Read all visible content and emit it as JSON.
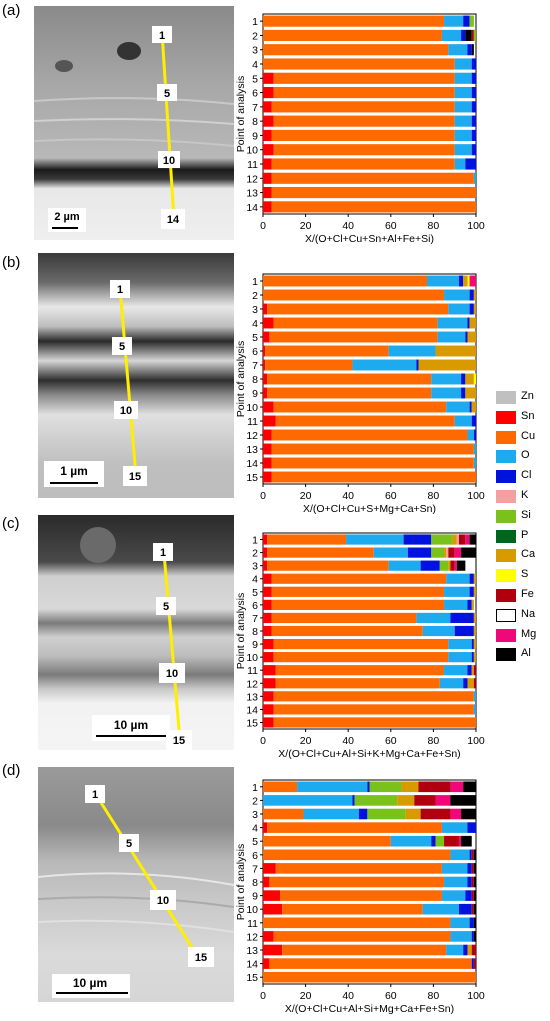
{
  "panels": [
    {
      "label": "(a)",
      "markers": [
        "1",
        "5",
        "10",
        "14"
      ],
      "scale_bar": "2 µm"
    },
    {
      "label": "(b)",
      "markers": [
        "1",
        "5",
        "10",
        "15"
      ],
      "scale_bar": "1 µm"
    },
    {
      "label": "(c)",
      "markers": [
        "1",
        "5",
        "10",
        "15"
      ],
      "scale_bar": "10 µm"
    },
    {
      "label": "(d)",
      "markers": [
        "1",
        "5",
        "10",
        "15"
      ],
      "scale_bar": "10 µm"
    }
  ],
  "legend": [
    {
      "name": "Zn",
      "color": "#c0c0c0"
    },
    {
      "name": "Sn",
      "color": "#ff0000"
    },
    {
      "name": "Cu",
      "color": "#ff6a00"
    },
    {
      "name": "O",
      "color": "#1eaaee"
    },
    {
      "name": "Cl",
      "color": "#0012dd"
    },
    {
      "name": "K",
      "color": "#f5a0a0"
    },
    {
      "name": "Si",
      "color": "#7ac11c"
    },
    {
      "name": "P",
      "color": "#00661e"
    },
    {
      "name": "Ca",
      "color": "#d99a00"
    },
    {
      "name": "S",
      "color": "#ffff00"
    },
    {
      "name": "Fe",
      "color": "#b00010"
    },
    {
      "name": "Na",
      "color": "#ffffff"
    },
    {
      "name": "Mg",
      "color": "#f0087a"
    },
    {
      "name": "Al",
      "color": "#000000"
    }
  ],
  "chart_data": [
    {
      "type": "bar",
      "orientation": "horizontal-stacked",
      "ylabel": "Point of analysis",
      "xlabel": "X/(O+Cl+Cu+Sn+Al+Fe+Si)",
      "xlim": [
        0,
        100
      ],
      "xticks": [
        "0",
        "20",
        "40",
        "60",
        "80",
        "100"
      ],
      "categories": [
        "1",
        "2",
        "3",
        "4",
        "5",
        "6",
        "7",
        "8",
        "9",
        "10",
        "11",
        "12",
        "13",
        "14"
      ],
      "series": [
        {
          "name": "Sn",
          "values": [
            0,
            0,
            0,
            0,
            5,
            5,
            4,
            5,
            4,
            5,
            4,
            4,
            4,
            4
          ]
        },
        {
          "name": "Cu",
          "values": [
            85,
            84,
            87,
            90,
            85,
            85,
            86,
            85,
            86,
            85,
            86,
            95,
            96,
            96
          ]
        },
        {
          "name": "O",
          "values": [
            9,
            9,
            9,
            8,
            8,
            8,
            8,
            8,
            8,
            8,
            5,
            1,
            0,
            0
          ]
        },
        {
          "name": "Cl",
          "values": [
            3,
            2,
            2,
            2,
            2,
            2,
            2,
            2,
            2,
            2,
            5,
            0,
            0,
            0
          ]
        },
        {
          "name": "Al",
          "values": [
            0,
            3,
            1,
            0,
            0,
            0,
            0,
            0,
            0,
            0,
            0,
            0,
            0,
            0
          ]
        },
        {
          "name": "Fe",
          "values": [
            0,
            1,
            0,
            0,
            0,
            0,
            0,
            0,
            0,
            0,
            0,
            0,
            0,
            0
          ]
        },
        {
          "name": "Si",
          "values": [
            2,
            1,
            0,
            0,
            0,
            0,
            0,
            0,
            0,
            0,
            0,
            0,
            0,
            0
          ]
        }
      ]
    },
    {
      "type": "bar",
      "orientation": "horizontal-stacked",
      "ylabel": "Point of analysis",
      "xlabel": "X/(O+Cl+Cu+S+Mg+Ca+Sn)",
      "xlim": [
        0,
        100
      ],
      "xticks": [
        "0",
        "20",
        "40",
        "60",
        "80",
        "100"
      ],
      "categories": [
        "1",
        "2",
        "3",
        "4",
        "5",
        "6",
        "7",
        "8",
        "9",
        "10",
        "11",
        "12",
        "13",
        "14",
        "15"
      ],
      "series": [
        {
          "name": "Sn",
          "values": [
            0,
            0,
            2,
            5,
            3,
            1,
            1,
            2,
            2,
            5,
            6,
            4,
            4,
            4,
            4
          ]
        },
        {
          "name": "Cu",
          "values": [
            77,
            85,
            85,
            77,
            79,
            58,
            41,
            77,
            77,
            81,
            84,
            92,
            95,
            95,
            96
          ]
        },
        {
          "name": "O",
          "values": [
            15,
            12,
            10,
            14,
            13,
            22,
            30,
            14,
            14,
            11,
            8,
            3,
            1,
            1,
            0
          ]
        },
        {
          "name": "Cl",
          "values": [
            2,
            2,
            2,
            1,
            1,
            0,
            1,
            2,
            2,
            1,
            2,
            1,
            0,
            0,
            0
          ]
        },
        {
          "name": "Ca",
          "values": [
            2,
            1,
            1,
            3,
            4,
            19,
            27,
            4,
            5,
            2,
            0,
            0,
            0,
            0,
            0
          ]
        },
        {
          "name": "S",
          "values": [
            1,
            0,
            0,
            0,
            0,
            0,
            0,
            1,
            0,
            0,
            0,
            0,
            0,
            0,
            0
          ]
        },
        {
          "name": "Mg",
          "values": [
            3,
            0,
            0,
            0,
            0,
            0,
            0,
            0,
            0,
            0,
            0,
            0,
            0,
            0,
            0
          ]
        }
      ]
    },
    {
      "type": "bar",
      "orientation": "horizontal-stacked",
      "ylabel": "Point of analysis",
      "xlabel": "X/(O+Cl+Cu+Al+Si+K+Mg+Ca+Fe+Sn)",
      "xlim": [
        0,
        100
      ],
      "xticks": [
        "0",
        "20",
        "40",
        "60",
        "80",
        "100"
      ],
      "categories": [
        "1",
        "2",
        "3",
        "4",
        "5",
        "6",
        "7",
        "8",
        "9",
        "10",
        "11",
        "12",
        "13",
        "14",
        "15"
      ],
      "series": [
        {
          "name": "Sn",
          "values": [
            2,
            2,
            2,
            4,
            4,
            4,
            4,
            4,
            5,
            5,
            6,
            6,
            5,
            5,
            5
          ]
        },
        {
          "name": "Cu",
          "values": [
            37,
            50,
            57,
            82,
            81,
            81,
            68,
            71,
            82,
            82,
            79,
            77,
            94,
            94,
            95
          ]
        },
        {
          "name": "O",
          "values": [
            27,
            16,
            15,
            11,
            12,
            11,
            16,
            15,
            11,
            11,
            11,
            11,
            1,
            1,
            0
          ]
        },
        {
          "name": "Cl",
          "values": [
            13,
            11,
            9,
            2,
            2,
            2,
            11,
            9,
            1,
            1,
            2,
            2,
            0,
            0,
            0
          ]
        },
        {
          "name": "Si",
          "values": [
            10,
            6,
            4,
            0,
            0,
            0,
            0,
            0,
            0,
            0,
            0,
            0,
            0,
            0,
            0
          ]
        },
        {
          "name": "Ca",
          "values": [
            2,
            1,
            1,
            1,
            1,
            1,
            1,
            1,
            1,
            1,
            1,
            3,
            0,
            0,
            0
          ]
        },
        {
          "name": "K",
          "values": [
            1,
            1,
            0,
            0,
            0,
            0,
            0,
            0,
            0,
            0,
            0,
            0,
            0,
            0,
            0
          ]
        },
        {
          "name": "Fe",
          "values": [
            3,
            3,
            2,
            0,
            0,
            0,
            0,
            0,
            0,
            0,
            1,
            1,
            0,
            0,
            0
          ]
        },
        {
          "name": "Mg",
          "values": [
            2,
            3,
            1,
            0,
            0,
            0,
            0,
            0,
            0,
            0,
            0,
            0,
            0,
            0,
            0
          ]
        },
        {
          "name": "Al",
          "values": [
            3,
            7,
            4,
            0,
            0,
            0,
            0,
            0,
            0,
            0,
            0,
            0,
            0,
            0,
            0
          ]
        }
      ]
    },
    {
      "type": "bar",
      "orientation": "horizontal-stacked",
      "ylabel": "Point of analysis",
      "xlabel": "X/(O+Cl+Cu+Al+Si+Mg+Ca+Fe+Sn)",
      "xlim": [
        0,
        100
      ],
      "xticks": [
        "0",
        "20",
        "40",
        "60",
        "80",
        "100"
      ],
      "categories": [
        "1",
        "2",
        "3",
        "4",
        "5",
        "6",
        "7",
        "8",
        "9",
        "10",
        "11",
        "12",
        "13",
        "14",
        "15"
      ],
      "series": [
        {
          "name": "Sn",
          "values": [
            0,
            0,
            0,
            2,
            0,
            0,
            6,
            3,
            8,
            9,
            0,
            5,
            9,
            3,
            0
          ]
        },
        {
          "name": "Cu",
          "values": [
            16,
            0,
            19,
            82,
            60,
            88,
            78,
            82,
            76,
            66,
            88,
            83,
            77,
            95,
            100
          ]
        },
        {
          "name": "O",
          "values": [
            33,
            42,
            26,
            12,
            19,
            9,
            12,
            11,
            11,
            17,
            9,
            10,
            8,
            0,
            0
          ]
        },
        {
          "name": "Cl",
          "values": [
            1,
            1,
            4,
            4,
            2,
            1,
            2,
            2,
            3,
            6,
            2,
            1,
            2,
            1,
            0
          ]
        },
        {
          "name": "Si",
          "values": [
            15,
            20,
            18,
            0,
            4,
            0,
            0,
            0,
            0,
            0,
            0,
            0,
            0,
            0,
            0
          ]
        },
        {
          "name": "Ca",
          "values": [
            8,
            8,
            7,
            0,
            0,
            0,
            0,
            0,
            0,
            0,
            0,
            0,
            2,
            0,
            0
          ]
        },
        {
          "name": "Fe",
          "values": [
            15,
            10,
            14,
            0,
            7,
            1,
            1,
            1,
            1,
            1,
            0,
            0,
            2,
            1,
            0
          ]
        },
        {
          "name": "Mg",
          "values": [
            6,
            7,
            5,
            0,
            1,
            0,
            0,
            0,
            0,
            0,
            0,
            0,
            0,
            0,
            0
          ]
        },
        {
          "name": "Al",
          "values": [
            6,
            12,
            7,
            0,
            5,
            1,
            1,
            1,
            1,
            1,
            1,
            1,
            0,
            0,
            0
          ]
        }
      ]
    }
  ]
}
